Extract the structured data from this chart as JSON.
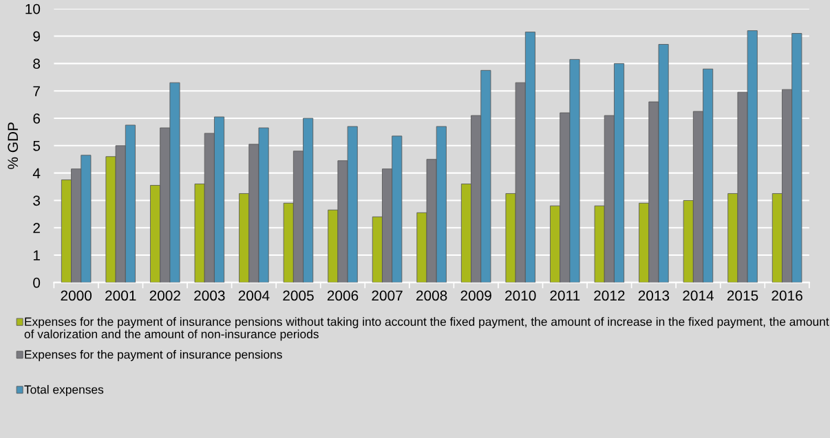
{
  "chart_data": {
    "type": "bar",
    "ylabel": "% GDP",
    "categories": [
      "2000",
      "2001",
      "2002",
      "2003",
      "2004",
      "2005",
      "2006",
      "2007",
      "2008",
      "2009",
      "2010",
      "2011",
      "2012",
      "2013",
      "2014",
      "2015",
      "2016"
    ],
    "series": [
      {
        "name": "Expenses for the payment of insurance pensions without taking into account the fixed payment, the amount of increase in the fixed payment, the amount of valorization and the amount of non-insurance periods",
        "color": "#a9b81c",
        "values": [
          3.75,
          4.6,
          3.55,
          3.6,
          3.25,
          2.9,
          2.65,
          2.4,
          2.55,
          3.6,
          3.25,
          2.8,
          2.8,
          2.9,
          3.0,
          3.25,
          3.25
        ]
      },
      {
        "name": "Expenses for the payment of insurance pensions",
        "color": "#7a7a80",
        "values": [
          4.15,
          5.0,
          5.65,
          5.45,
          5.05,
          4.8,
          4.45,
          4.15,
          4.5,
          6.1,
          7.3,
          6.2,
          6.1,
          6.6,
          6.25,
          6.95,
          7.05
        ]
      },
      {
        "name": "Total expenses",
        "color": "#4a93b8",
        "values": [
          4.65,
          5.75,
          7.3,
          6.05,
          5.65,
          6.0,
          5.7,
          5.35,
          5.7,
          7.75,
          9.15,
          8.15,
          8.0,
          8.7,
          7.8,
          9.2,
          9.1
        ]
      }
    ],
    "ylim": [
      0,
      10
    ],
    "yticks": [
      0,
      1,
      2,
      3,
      4,
      5,
      6,
      7,
      8,
      9,
      10
    ],
    "grid": "y",
    "legend": "bottom"
  }
}
